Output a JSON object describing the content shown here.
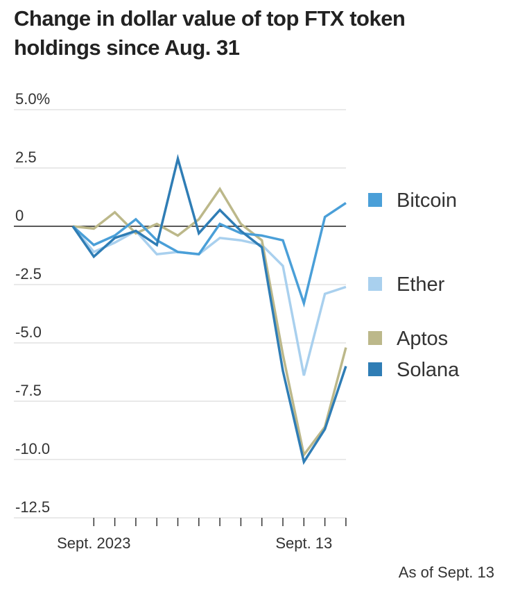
{
  "header": {
    "title": "Change in dollar value of top FTX token holdings since Aug. 31"
  },
  "footnote": "As of Sept. 13",
  "chart_data": {
    "type": "line",
    "title": "Change in dollar value of top FTX token holdings since Aug. 31",
    "ylim": [
      -12.5,
      5.0
    ],
    "yticks": [
      5.0,
      2.5,
      0,
      -2.5,
      -5.0,
      -7.5,
      -10.0,
      -12.5
    ],
    "ytick_labels": [
      "5.0%",
      "2.5",
      "0",
      "-2.5",
      "-5.0",
      "-7.5",
      "-10.0",
      "-12.5"
    ],
    "grid": true,
    "legend_position": "right",
    "x_labels": [
      {
        "index": 1,
        "text": "Sept. 2023"
      },
      {
        "index": 11,
        "text": "Sept. 13"
      }
    ],
    "x_count": 14,
    "series": [
      {
        "name": "Bitcoin",
        "color": "#4a9fd8",
        "values": [
          0.0,
          -0.8,
          -0.4,
          0.3,
          -0.6,
          -1.1,
          -1.2,
          0.1,
          -0.3,
          -0.4,
          -0.6,
          -3.3,
          0.4,
          1.0
        ]
      },
      {
        "name": "Ether",
        "color": "#a9d0ee",
        "values": [
          0.0,
          -1.1,
          -0.7,
          -0.2,
          -1.2,
          -1.1,
          -1.2,
          -0.5,
          -0.6,
          -0.8,
          -1.7,
          -6.4,
          -2.9,
          -2.6
        ]
      },
      {
        "name": "Aptos",
        "color": "#bcb88a",
        "values": [
          0.0,
          -0.1,
          0.6,
          -0.3,
          0.1,
          -0.4,
          0.3,
          1.6,
          0.1,
          -0.6,
          -5.5,
          -9.8,
          -8.6,
          -5.2
        ]
      },
      {
        "name": "Solana",
        "color": "#2f7db5",
        "values": [
          0.0,
          -1.3,
          -0.5,
          -0.2,
          -0.8,
          2.9,
          -0.3,
          0.7,
          -0.2,
          -0.9,
          -6.2,
          -10.1,
          -8.7,
          -6.0
        ]
      }
    ]
  }
}
